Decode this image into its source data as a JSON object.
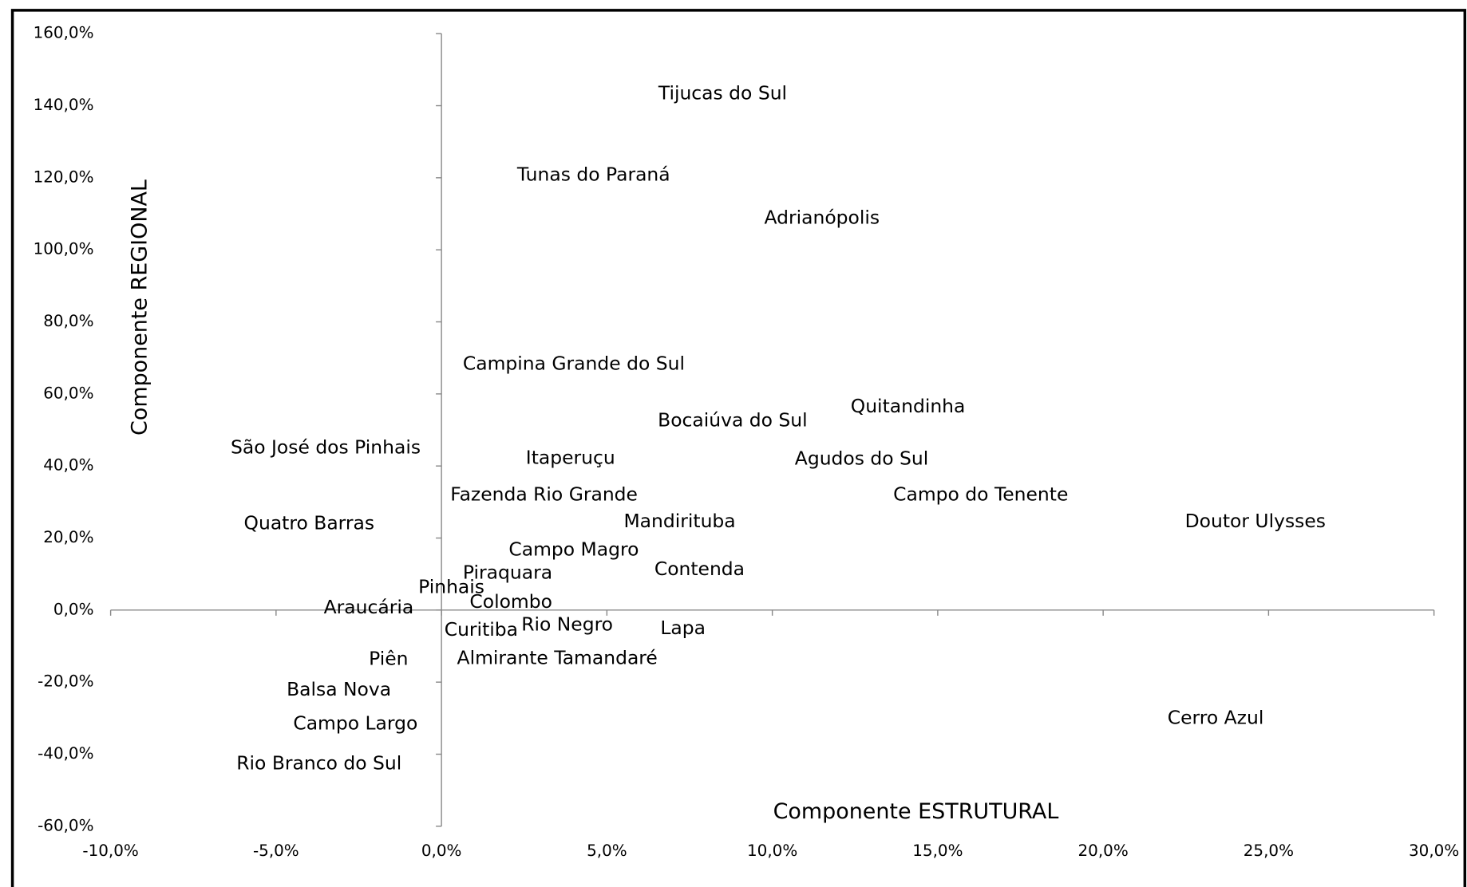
{
  "chart_data": {
    "type": "scatter",
    "xlabel": "Componente ESTRUTURAL",
    "ylabel": "Componente REGIONAL",
    "labels": [
      "Tijucas do Sul",
      "Tunas do Paraná",
      "Adrianópolis",
      "Campina Grande do Sul",
      "Quitandinha",
      "Bocaiúva do Sul",
      "São José dos Pinhais",
      "Itaperuçu",
      "Agudos do Sul",
      "Fazenda Rio Grande",
      "Campo do Tenente",
      "Quatro Barras",
      "Mandirituba",
      "Doutor Ulysses",
      "Campo Magro",
      "Contenda",
      "Piraquara",
      "Pinhais",
      "Colombo",
      "Araucária",
      "Curitiba",
      "Rio Negro",
      "Lapa",
      "Piên",
      "Almirante Tamandaré",
      "Balsa Nova",
      "Campo Largo",
      "Cerro Azul",
      "Rio Branco do Sul"
    ],
    "x": [
      8.5,
      4.6,
      11.5,
      4.0,
      14.1,
      8.8,
      -3.5,
      3.9,
      12.7,
      3.1,
      16.3,
      -4.0,
      7.2,
      24.6,
      4.0,
      7.8,
      2.0,
      0.3,
      2.1,
      -2.2,
      1.2,
      3.8,
      7.3,
      -1.6,
      3.5,
      -3.1,
      -2.6,
      23.4,
      -3.7
    ],
    "values": [
      143.2,
      120.6,
      108.7,
      68.2,
      56.3,
      52.4,
      44.9,
      42.0,
      41.8,
      31.9,
      31.9,
      23.9,
      24.4,
      24.4,
      16.6,
      11.2,
      10.1,
      6.2,
      2.1,
      0.5,
      -5.7,
      -4.2,
      -5.2,
      -13.8,
      -13.5,
      -22.3,
      -31.7,
      -30.1,
      -42.8
    ],
    "color": "#000000",
    "xlim": [
      -10,
      30
    ],
    "xticks": [
      {
        "value": -10,
        "label": "-10,0%"
      },
      {
        "value": -5,
        "label": "-5,0%"
      },
      {
        "value": 0,
        "label": "0,0%"
      },
      {
        "value": 5,
        "label": "5,0%"
      },
      {
        "value": 10,
        "label": "10,0%"
      },
      {
        "value": 15,
        "label": "15,0%"
      },
      {
        "value": 20,
        "label": "20,0%"
      },
      {
        "value": 25,
        "label": "25,0%"
      },
      {
        "value": 30,
        "label": "30,0%"
      }
    ],
    "ylim": [
      -60,
      160
    ],
    "yticks": [
      {
        "value": -60,
        "label": "-60,0%"
      },
      {
        "value": -40,
        "label": "-40,0%"
      },
      {
        "value": -20,
        "label": "-20,0%"
      },
      {
        "value": 0,
        "label": "0,0%"
      },
      {
        "value": 20,
        "label": "20,0%"
      },
      {
        "value": 40,
        "label": "40,0%"
      },
      {
        "value": 60,
        "label": "60,0%"
      },
      {
        "value": 80,
        "label": "80,0%"
      },
      {
        "value": 100,
        "label": "100,0%"
      },
      {
        "value": 120,
        "label": "120,0%"
      },
      {
        "value": 140,
        "label": "140,0%"
      },
      {
        "value": 160,
        "label": "160,0%"
      }
    ],
    "grid": false
  }
}
